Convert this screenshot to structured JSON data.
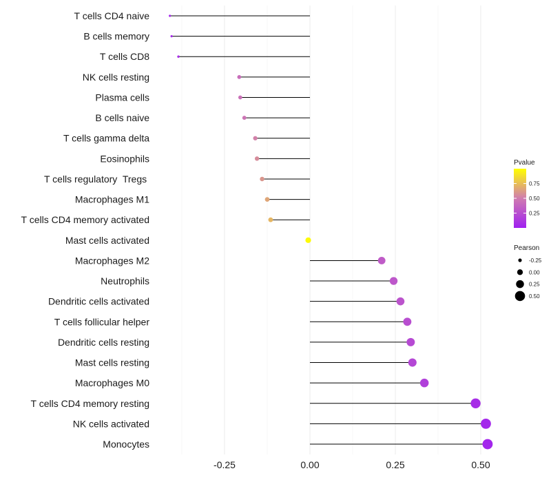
{
  "chart_data": {
    "type": "lollipop",
    "title": "",
    "xlabel": "",
    "ylabel": "",
    "xlim": [
      -0.4,
      0.59
    ],
    "xticks": [
      -0.25,
      0.0,
      0.25,
      0.5
    ],
    "xtick_labels": [
      "-0.25",
      "0.00",
      "0.25",
      "0.50"
    ],
    "grid": true,
    "legend_position": "right",
    "colors": {
      "low": "#a020f0",
      "mid": "#d07cb0",
      "high": "#ffff00",
      "stem": "#000000",
      "grid": "#ebebeb"
    },
    "categories": [
      "T cells CD4 naive",
      "B cells memory",
      "T cells CD8",
      "NK cells resting",
      "Plasma cells",
      "B cells naive",
      "T cells gamma delta",
      "Eosinophils",
      "T cells regulatory  Tregs ",
      "Macrophages M1",
      "T cells CD4 memory activated",
      "Mast cells activated",
      "Macrophages M2",
      "Neutrophils",
      "Dendritic cells activated",
      "T cells follicular helper",
      "Dendritic cells resting",
      "Mast cells resting",
      "Macrophages M0",
      "T cells CD4 memory resting",
      "NK cells activated",
      "Monocytes"
    ],
    "pearson": [
      -0.41,
      -0.405,
      -0.385,
      -0.207,
      -0.204,
      -0.192,
      -0.16,
      -0.155,
      -0.14,
      -0.125,
      -0.115,
      -0.005,
      0.21,
      0.245,
      0.265,
      0.285,
      0.295,
      0.3,
      0.335,
      0.485,
      0.515,
      0.52
    ],
    "pvalue": [
      0.04,
      0.06,
      0.08,
      0.42,
      0.44,
      0.46,
      0.52,
      0.56,
      0.6,
      0.66,
      0.72,
      0.98,
      0.32,
      0.3,
      0.28,
      0.25,
      0.23,
      0.21,
      0.17,
      0.07,
      0.04,
      0.03
    ],
    "legend": {
      "pvalue": {
        "title": "Pvalue",
        "ticks": [
          0.25,
          0.5,
          0.75
        ],
        "tick_labels": [
          "0.25",
          "0.50",
          "0.75"
        ],
        "range": [
          0.0,
          1.0
        ]
      },
      "pearson": {
        "title": "Pearson",
        "values": [
          -0.25,
          0.0,
          0.25,
          0.5
        ],
        "labels": [
          "-0.25",
          "0.00",
          "0.25",
          "0.50"
        ]
      }
    }
  }
}
